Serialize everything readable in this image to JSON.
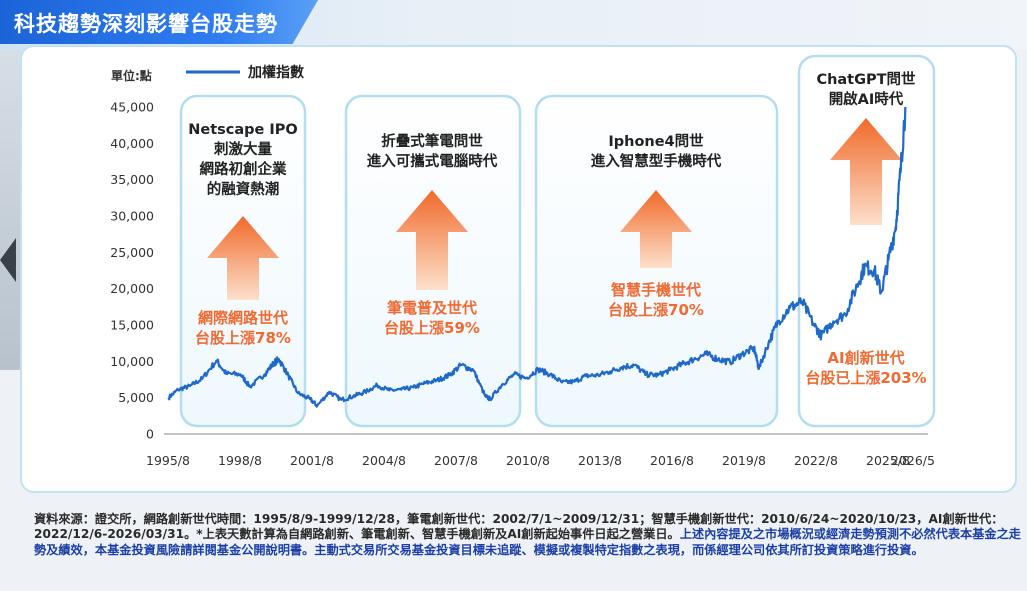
{
  "title": "科技趨勢深刻影響台股走勢",
  "colors": {
    "series": "#1f6ac8",
    "title_bg": "#1f6ae0",
    "arrow": "#f07a38",
    "highlight_text": "#f06a32",
    "box_border": "#b3def1",
    "disclaimer": "#1b3fa6"
  },
  "chart_data": {
    "type": "line",
    "unit_label": "單位:點",
    "legend": "加權指數",
    "legend_position": "top-left",
    "ylim": [
      0,
      45000
    ],
    "y_ticks": [
      "0",
      "5,000",
      "10,000",
      "15,000",
      "20,000",
      "25,000",
      "30,000",
      "35,000",
      "40,000",
      "45,000"
    ],
    "y_tick_values": [
      0,
      5000,
      10000,
      15000,
      20000,
      25000,
      30000,
      35000,
      40000,
      45000
    ],
    "x_ticks": [
      "1995/8",
      "1998/8",
      "2001/8",
      "2004/8",
      "2007/8",
      "2010/8",
      "2013/8",
      "2016/8",
      "2019/8",
      "2022/8",
      "2025/8",
      "2026/5"
    ],
    "x_tick_values": [
      1995.58,
      1998.58,
      2001.58,
      2004.58,
      2007.58,
      2010.58,
      2013.58,
      2016.58,
      2019.58,
      2022.58,
      2025.58,
      2026.33
    ],
    "grid": false,
    "series": [
      {
        "x": [
          1995.6,
          1996.0,
          1996.5,
          1997.0,
          1997.6,
          1998.0,
          1998.6,
          1999.0,
          1999.6,
          2000.0,
          2000.2,
          2000.6,
          2001.0,
          2001.5,
          2001.8,
          2002.3,
          2002.8,
          2003.3,
          2003.8,
          2004.3,
          2004.8,
          2005.3,
          2005.8,
          2006.3,
          2006.8,
          2007.3,
          2007.8,
          2008.3,
          2008.8,
          2009.0,
          2009.5,
          2010.0,
          2010.5,
          2011.0,
          2011.5,
          2012.0,
          2012.5,
          2013.0,
          2013.5,
          2014.0,
          2014.5,
          2015.0,
          2015.5,
          2016.0,
          2016.5,
          2017.0,
          2017.5,
          2018.0,
          2018.5,
          2019.0,
          2019.5,
          2020.0,
          2020.2,
          2020.6,
          2021.0,
          2021.5,
          2022.0,
          2022.5,
          2022.8,
          2023.3,
          2023.8,
          2024.3,
          2024.6,
          2025.0,
          2025.3,
          2025.6,
          2025.9,
          2026.1,
          2026.3
        ],
        "y": [
          5000,
          6100,
          6600,
          7600,
          10100,
          8300,
          8200,
          6500,
          8200,
          9800,
          10300,
          8000,
          5600,
          4800,
          3900,
          5800,
          4700,
          5200,
          5800,
          6700,
          6000,
          6100,
          6400,
          7000,
          7400,
          8100,
          9500,
          8800,
          5200,
          4800,
          6800,
          8200,
          7700,
          8900,
          8200,
          7100,
          7200,
          8000,
          8100,
          8600,
          9200,
          9500,
          8200,
          8100,
          8800,
          9600,
          10300,
          11000,
          10300,
          9900,
          11000,
          11800,
          9000,
          12500,
          15500,
          17400,
          18200,
          15000,
          13500,
          15500,
          16500,
          20500,
          23000,
          22600,
          19500,
          24000,
          28500,
          36000,
          45000
        ]
      }
    ],
    "eras": [
      {
        "label_lines": [
          "Netscape IPO",
          "刺激大量",
          "網路初創企業",
          "的融資熱潮"
        ],
        "highlight_lines": [
          "網際網路世代",
          "台股上漲78%"
        ]
      },
      {
        "label_lines": [
          "折疊式筆電問世",
          "進入可攜式電腦時代"
        ],
        "highlight_lines": [
          "筆電普及世代",
          "台股上漲59%"
        ]
      },
      {
        "label_lines": [
          "Iphone4問世",
          "進入智慧型手機時代"
        ],
        "highlight_lines": [
          "智慧手機世代",
          "台股上漲70%"
        ]
      },
      {
        "label_lines": [
          "ChatGPT問世",
          "開啟AI時代"
        ],
        "highlight_lines": [
          "AI創新世代",
          "台股已上漲203%"
        ]
      }
    ]
  },
  "footnote": {
    "source": "資料來源：證交所，網路創新世代時間：1995/8/9-1999/12/28，筆電創新世代：2002/7/1~2009/12/31；智慧手機創新世代：2010/6/24~2020/10/23，AI創新世代：2022/12/6-2026/03/31。*上表天數計算為自網路創新、筆電創新、智慧手機創新及AI創新起始事件日起之營業日。",
    "disclaimer": "上述內容提及之市場概況或經濟走勢預測不必然代表本基金之走勢及績效，本基金投資風險請詳閱基金公開說明書。主動式交易所交易基金投資目標未追蹤、模擬或複製特定指數之表現，而係經理公司依其所訂投資策略進行投資。"
  }
}
